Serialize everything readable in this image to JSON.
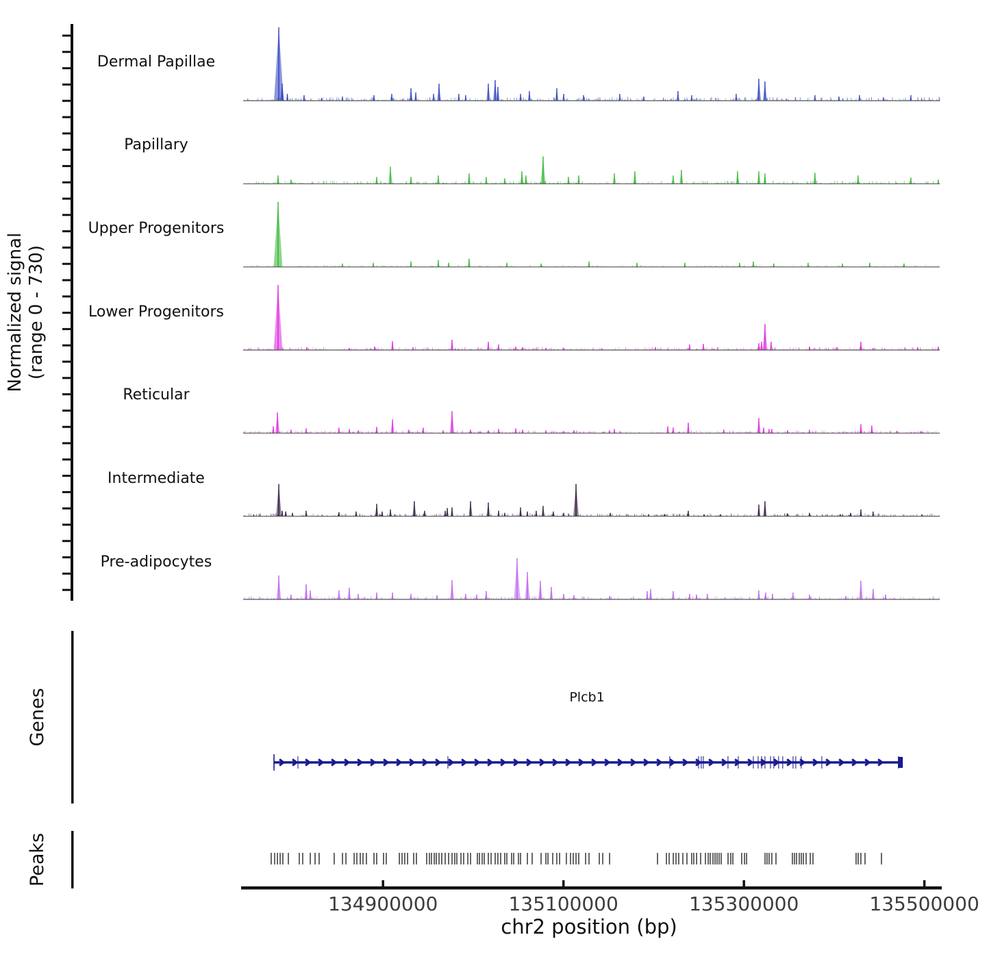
{
  "figure": {
    "ylabel_line1": "Normalized signal",
    "ylabel_line2": "(range 0 - 730)",
    "xlabel": "chr2 position (bp)",
    "genes_sidebar_label": "Genes",
    "peaks_sidebar_label": "Peaks"
  },
  "chart_data": {
    "type": "area",
    "title": "",
    "xlabel": "chr2 position (bp)",
    "ylabel": "Normalized signal (range 0 - 730)",
    "y_range": [
      0,
      730
    ],
    "region": {
      "chrom": "chr2",
      "start": 134745000,
      "end": 135517000
    },
    "x_ticks": [
      134900000,
      135100000,
      135300000,
      135500000
    ],
    "x_tick_labels": [
      "134900000",
      "135100000",
      "135300000",
      "135500000"
    ],
    "axis_color": "#111111",
    "tick_label_color": "#3d3d3d",
    "tracks": [
      {
        "label": "Dermal Papillae",
        "color": "#2b3fbf",
        "peaks": [
          [
            134784500,
            710
          ],
          [
            134788300,
            165
          ],
          [
            134794000,
            66
          ],
          [
            134812500,
            53
          ],
          [
            134832000,
            27
          ],
          [
            134855000,
            40
          ],
          [
            134890000,
            53
          ],
          [
            134909700,
            66
          ],
          [
            134931000,
            120
          ],
          [
            134936300,
            80
          ],
          [
            134956000,
            66
          ],
          [
            134962100,
            165
          ],
          [
            134984000,
            66
          ],
          [
            134991600,
            53
          ],
          [
            135016700,
            165
          ],
          [
            135024300,
            200
          ],
          [
            135027300,
            133
          ],
          [
            135052400,
            66
          ],
          [
            135062200,
            93
          ],
          [
            135092600,
            120
          ],
          [
            135100200,
            66
          ],
          [
            135122200,
            53
          ],
          [
            135162400,
            66
          ],
          [
            135189000,
            40
          ],
          [
            135226900,
            93
          ],
          [
            135242100,
            53
          ],
          [
            135291400,
            66
          ],
          [
            135316500,
            212
          ],
          [
            135323300,
            186
          ],
          [
            135378700,
            53
          ],
          [
            135405300,
            40
          ],
          [
            135428000,
            53
          ],
          [
            135454600,
            33
          ],
          [
            135485000,
            53
          ]
        ]
      },
      {
        "label": "Papillary",
        "color": "#2db42d",
        "peaks": [
          [
            134783700,
            80
          ],
          [
            134798100,
            40
          ],
          [
            134893000,
            66
          ],
          [
            134908200,
            165
          ],
          [
            134931000,
            66
          ],
          [
            134961300,
            80
          ],
          [
            134995400,
            100
          ],
          [
            135014400,
            66
          ],
          [
            135034900,
            53
          ],
          [
            135053900,
            120
          ],
          [
            135058400,
            80
          ],
          [
            135077400,
            265
          ],
          [
            135105500,
            66
          ],
          [
            135116900,
            80
          ],
          [
            135156400,
            100
          ],
          [
            135179100,
            120
          ],
          [
            135221600,
            80
          ],
          [
            135230700,
            133
          ],
          [
            135292900,
            120
          ],
          [
            135316500,
            120
          ],
          [
            135323300,
            100
          ],
          [
            135378700,
            106
          ],
          [
            135426500,
            80
          ],
          [
            135485000,
            60
          ],
          [
            135515400,
            40
          ]
        ]
      },
      {
        "label": "Upper Progenitors",
        "color": "#2db42d",
        "peaks": [
          [
            134783700,
            630
          ],
          [
            134855000,
            33
          ],
          [
            134889200,
            40
          ],
          [
            134931000,
            53
          ],
          [
            134961300,
            66
          ],
          [
            134972700,
            40
          ],
          [
            134995400,
            80
          ],
          [
            135037200,
            40
          ],
          [
            135075100,
            33
          ],
          [
            135128300,
            53
          ],
          [
            135181400,
            40
          ],
          [
            135234500,
            40
          ],
          [
            135295200,
            40
          ],
          [
            135310400,
            53
          ],
          [
            135333100,
            33
          ],
          [
            135371100,
            40
          ],
          [
            135409100,
            33
          ],
          [
            135439400,
            40
          ],
          [
            135477400,
            33
          ]
        ]
      },
      {
        "label": "Lower Progenitors",
        "color": "#dd22dd",
        "peaks": [
          [
            134783700,
            630
          ],
          [
            134815600,
            27
          ],
          [
            134862600,
            20
          ],
          [
            134890700,
            33
          ],
          [
            134910500,
            86
          ],
          [
            134933200,
            27
          ],
          [
            134976500,
            100
          ],
          [
            135016700,
            80
          ],
          [
            135028100,
            53
          ],
          [
            135047100,
            33
          ],
          [
            135054700,
            27
          ],
          [
            135080500,
            20
          ],
          [
            135100200,
            20
          ],
          [
            135201900,
            27
          ],
          [
            135239800,
            53
          ],
          [
            135255000,
            60
          ],
          [
            135316500,
            66
          ],
          [
            135319500,
            80
          ],
          [
            135323300,
            252
          ],
          [
            135330100,
            80
          ],
          [
            135372600,
            33
          ],
          [
            135403000,
            27
          ],
          [
            135429600,
            80
          ],
          [
            135443200,
            20
          ],
          [
            135492500,
            27
          ],
          [
            135515400,
            33
          ]
        ]
      },
      {
        "label": "Reticular",
        "color": "#dd22dd",
        "peaks": [
          [
            134778400,
            66
          ],
          [
            134783000,
            200
          ],
          [
            134798100,
            33
          ],
          [
            134814800,
            46
          ],
          [
            134851200,
            53
          ],
          [
            134862600,
            40
          ],
          [
            134872500,
            27
          ],
          [
            134893000,
            60
          ],
          [
            134910500,
            133
          ],
          [
            134928700,
            33
          ],
          [
            134944600,
            53
          ],
          [
            134966600,
            27
          ],
          [
            134976500,
            212
          ],
          [
            134997000,
            33
          ],
          [
            135016700,
            27
          ],
          [
            135028100,
            40
          ],
          [
            135047100,
            46
          ],
          [
            135054700,
            33
          ],
          [
            135080500,
            27
          ],
          [
            135100200,
            20
          ],
          [
            135111600,
            27
          ],
          [
            135151100,
            27
          ],
          [
            135156400,
            40
          ],
          [
            135215600,
            66
          ],
          [
            135221600,
            53
          ],
          [
            135238300,
            100
          ],
          [
            135277700,
            33
          ],
          [
            135316500,
            146
          ],
          [
            135321800,
            53
          ],
          [
            135327900,
            40
          ],
          [
            135330900,
            40
          ],
          [
            135348300,
            27
          ],
          [
            135372600,
            33
          ],
          [
            135429600,
            86
          ],
          [
            135441700,
            73
          ],
          [
            135469800,
            20
          ],
          [
            135496300,
            20
          ]
        ]
      },
      {
        "label": "Intermediate",
        "color": "#2a1238",
        "peaks": [
          [
            134784500,
            312
          ],
          [
            134788300,
            53
          ],
          [
            134792100,
            46
          ],
          [
            134799600,
            33
          ],
          [
            134814800,
            53
          ],
          [
            134851200,
            40
          ],
          [
            134870200,
            46
          ],
          [
            134893000,
            120
          ],
          [
            134899100,
            46
          ],
          [
            134908200,
            66
          ],
          [
            134934700,
            146
          ],
          [
            134946100,
            53
          ],
          [
            134968900,
            53
          ],
          [
            134971200,
            80
          ],
          [
            134976500,
            86
          ],
          [
            134997000,
            146
          ],
          [
            135016700,
            133
          ],
          [
            135028100,
            53
          ],
          [
            135034900,
            33
          ],
          [
            135052400,
            86
          ],
          [
            135060000,
            46
          ],
          [
            135069800,
            53
          ],
          [
            135077400,
            100
          ],
          [
            135088800,
            46
          ],
          [
            135100200,
            33
          ],
          [
            135113900,
            312
          ],
          [
            135151900,
            33
          ],
          [
            135194300,
            20
          ],
          [
            135211800,
            20
          ],
          [
            135238300,
            53
          ],
          [
            135255800,
            20
          ],
          [
            135274000,
            20
          ],
          [
            135316500,
            113
          ],
          [
            135323300,
            146
          ],
          [
            135348300,
            27
          ],
          [
            135372600,
            33
          ],
          [
            135406800,
            20
          ],
          [
            135418200,
            33
          ],
          [
            135429600,
            66
          ],
          [
            135443200,
            46
          ]
        ]
      },
      {
        "label": "Pre-adipocytes",
        "color": "#bb5fee",
        "peaks": [
          [
            134784500,
            232
          ],
          [
            134798100,
            46
          ],
          [
            134814800,
            146
          ],
          [
            134819400,
            86
          ],
          [
            134851200,
            86
          ],
          [
            134862600,
            113
          ],
          [
            134872500,
            53
          ],
          [
            134893000,
            66
          ],
          [
            134910500,
            66
          ],
          [
            134931000,
            53
          ],
          [
            134959800,
            40
          ],
          [
            134976500,
            186
          ],
          [
            134991600,
            53
          ],
          [
            135003800,
            46
          ],
          [
            135014400,
            80
          ],
          [
            135048600,
            398
          ],
          [
            135060000,
            265
          ],
          [
            135074400,
            179
          ],
          [
            135086500,
            120
          ],
          [
            135100200,
            53
          ],
          [
            135111600,
            40
          ],
          [
            135151100,
            33
          ],
          [
            135192800,
            80
          ],
          [
            135196600,
            100
          ],
          [
            135221600,
            80
          ],
          [
            135239800,
            53
          ],
          [
            135247400,
            46
          ],
          [
            135259500,
            53
          ],
          [
            135316500,
            86
          ],
          [
            135324100,
            66
          ],
          [
            135331600,
            53
          ],
          [
            135354400,
            66
          ],
          [
            135372600,
            46
          ],
          [
            135412900,
            33
          ],
          [
            135429600,
            179
          ],
          [
            135443200,
            100
          ],
          [
            135456900,
            46
          ]
        ]
      }
    ],
    "genes_track": {
      "label": "Genes",
      "genes": [
        {
          "name": "Plcb1",
          "start": 134779200,
          "end": 135473000,
          "strand": "+",
          "color": "#1a1a8f",
          "exons": [
            134779200,
            134805700,
            134971900,
            135217800,
            135249700,
            135252700,
            135255000,
            135282300,
            135293700,
            135310400,
            135315700,
            135319500,
            135323300,
            135329400,
            135333100,
            135338400,
            135343000,
            135354400,
            135357400,
            135363500,
            135386300,
            135471300
          ]
        }
      ]
    },
    "peaks_track": {
      "label": "Peaks",
      "color": "#4d4d4d",
      "positions": [
        134776100,
        134779900,
        134783000,
        134786000,
        134789000,
        134795100,
        134807200,
        134811000,
        134819400,
        134824700,
        134829200,
        134845900,
        134855100,
        134858900,
        134868000,
        134871000,
        134874800,
        134877800,
        134881600,
        134890000,
        134893000,
        134900600,
        134903600,
        134918100,
        134921100,
        134924100,
        134927200,
        134934000,
        134937000,
        134948400,
        134951400,
        134953700,
        134956800,
        134959000,
        134962100,
        134965100,
        134968900,
        134972700,
        134976500,
        134979500,
        134981800,
        134986400,
        134989400,
        134994000,
        134997000,
        135004600,
        135006900,
        135009900,
        135012200,
        135016700,
        135019800,
        135024300,
        135027300,
        135030400,
        135034900,
        135037200,
        135042500,
        135044800,
        135050100,
        135052400,
        135060000,
        135065300,
        135075200,
        135080500,
        135082800,
        135088100,
        135092600,
        135095700,
        135103200,
        135107800,
        135110800,
        135113900,
        135116900,
        135124500,
        135128300,
        135139700,
        135143500,
        135151100,
        135204200,
        135214100,
        135217100,
        135221700,
        135224700,
        135227700,
        135232300,
        135236800,
        135242100,
        135244400,
        135247500,
        135252000,
        135257300,
        135260400,
        135262600,
        135265700,
        135268000,
        135270200,
        135272500,
        135274800,
        135282400,
        135285400,
        135287700,
        135297500,
        135300600,
        135302900,
        135323400,
        135325600,
        135327900,
        135330900,
        135335500,
        135353700,
        135356000,
        135358300,
        135361300,
        135363600,
        135365900,
        135368900,
        135373500,
        135376500,
        135424300,
        135426600,
        135429600,
        135434200,
        135452400
      ]
    }
  }
}
